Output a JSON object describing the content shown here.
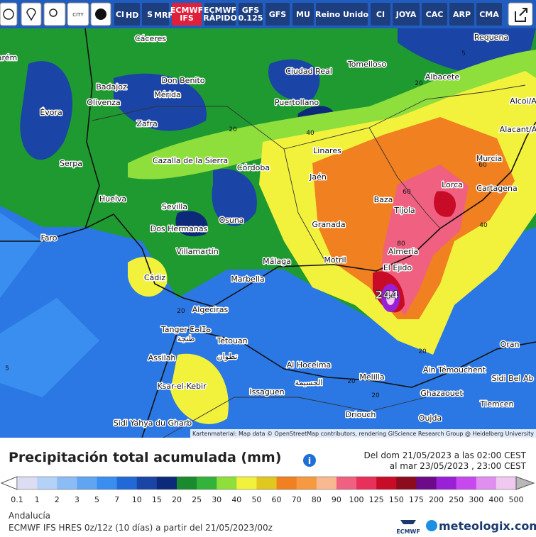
{
  "toolbar": {
    "city_icon": "CITY",
    "buttons": [
      {
        "label": "CI",
        "sub": "HD"
      },
      {
        "label": "S",
        "sub": "MRF"
      },
      {
        "label": "ECMWF",
        "sub": "IFS",
        "active": true
      },
      {
        "label": "ECMWF",
        "sub": "RÁPIDO"
      },
      {
        "label": "GFS",
        "sub": "0.125"
      },
      {
        "label": "GFS"
      },
      {
        "label": "MU"
      },
      {
        "label": "Reino Unido"
      },
      {
        "label": "CI"
      },
      {
        "label": "JOYA"
      },
      {
        "label": "CAC"
      },
      {
        "label": "ARP"
      },
      {
        "label": "CMA"
      }
    ]
  },
  "map": {
    "places": [
      "Cáceres",
      "Requena",
      "Tomelloso",
      "Ciudad Real",
      "Don Benito",
      "Albacete",
      "Badajoz",
      "Mérida",
      "Olivenza",
      "Puertollano",
      "Évora",
      "Zafra",
      "Alcoi/A",
      "Linares",
      "Alacant/A",
      "Cazalla de la Sierra",
      "Córdoba",
      "Serpa",
      "Murcia",
      "Jaén",
      "Lorca",
      "Cartagena",
      "Baza",
      "Huelva",
      "Sevilla",
      "Tíjola",
      "Osuna",
      "Granada",
      "Dos Hermanas",
      "Faro",
      "Almería",
      "Villamartín",
      "Motril",
      "Málaga",
      "El Ejido",
      "Cádiz",
      "Marbella",
      "Algeciras",
      "Tanger ⵟⴰⵏⵊⴰ",
      "طنجة",
      "Tetouan",
      "تطوان",
      "Assilah",
      "Al Hoceima",
      "الحسيمة",
      "Oran",
      "Ain Témouchent",
      "Sidi Bel Ab",
      "Ksar-el-Kebir",
      "Melilla",
      "Issaguen",
      "Ghazaouet",
      "Tlemcen",
      "Driouch",
      "Oujda",
      "Sidi Yahya du Gharb",
      "arém"
    ],
    "contours": [
      "20",
      "40",
      "20",
      "60",
      "60",
      "40",
      "80",
      "20",
      "20",
      "20",
      "5",
      "5",
      "20"
    ],
    "max_label": "244",
    "attribution": "Kartenmaterial: Map data © OpenStreetMap contributors, rendering GIScience Research Group @ Heidelberg University"
  },
  "legend": {
    "title": "Precipitación total acumulada (mm)",
    "date_from": "Del dom 21/05/2023 a las 02:00 CEST",
    "date_to": "al mar 23/05/2023 , 23:00 CEST",
    "labels": [
      "0.1",
      "1",
      "2",
      "3",
      "5",
      "7",
      "10",
      "15",
      "20",
      "25",
      "30",
      "40",
      "50",
      "60",
      "70",
      "80",
      "90",
      "100",
      "125",
      "150",
      "175",
      "200",
      "250",
      "300",
      "400",
      "500"
    ],
    "colors": [
      "#dcdcf2",
      "#b4d2f7",
      "#8cbcf5",
      "#5fa5f2",
      "#3a8ef0",
      "#2169d6",
      "#1a44a6",
      "#0d2a7a",
      "#1a8a2e",
      "#33b33a",
      "#8ede3c",
      "#f2f23c",
      "#e0c820",
      "#f08020",
      "#f59a40",
      "#f8b890",
      "#f06080",
      "#e8305a",
      "#c80c28",
      "#8c0c1e",
      "#6c0a8a",
      "#9a20d8",
      "#c848f0",
      "#e08ef0",
      "#f0c8f0"
    ],
    "below_color": "#ffffff",
    "above_color": "#b8b8b8",
    "region": "Andalucía",
    "model": "ECMWF IFS HRES 0z/12z (10 días) a partir del 21/05/2023/00z"
  },
  "footer": {
    "ecmwf": "ECMWF",
    "brand": "meteologix.com"
  }
}
